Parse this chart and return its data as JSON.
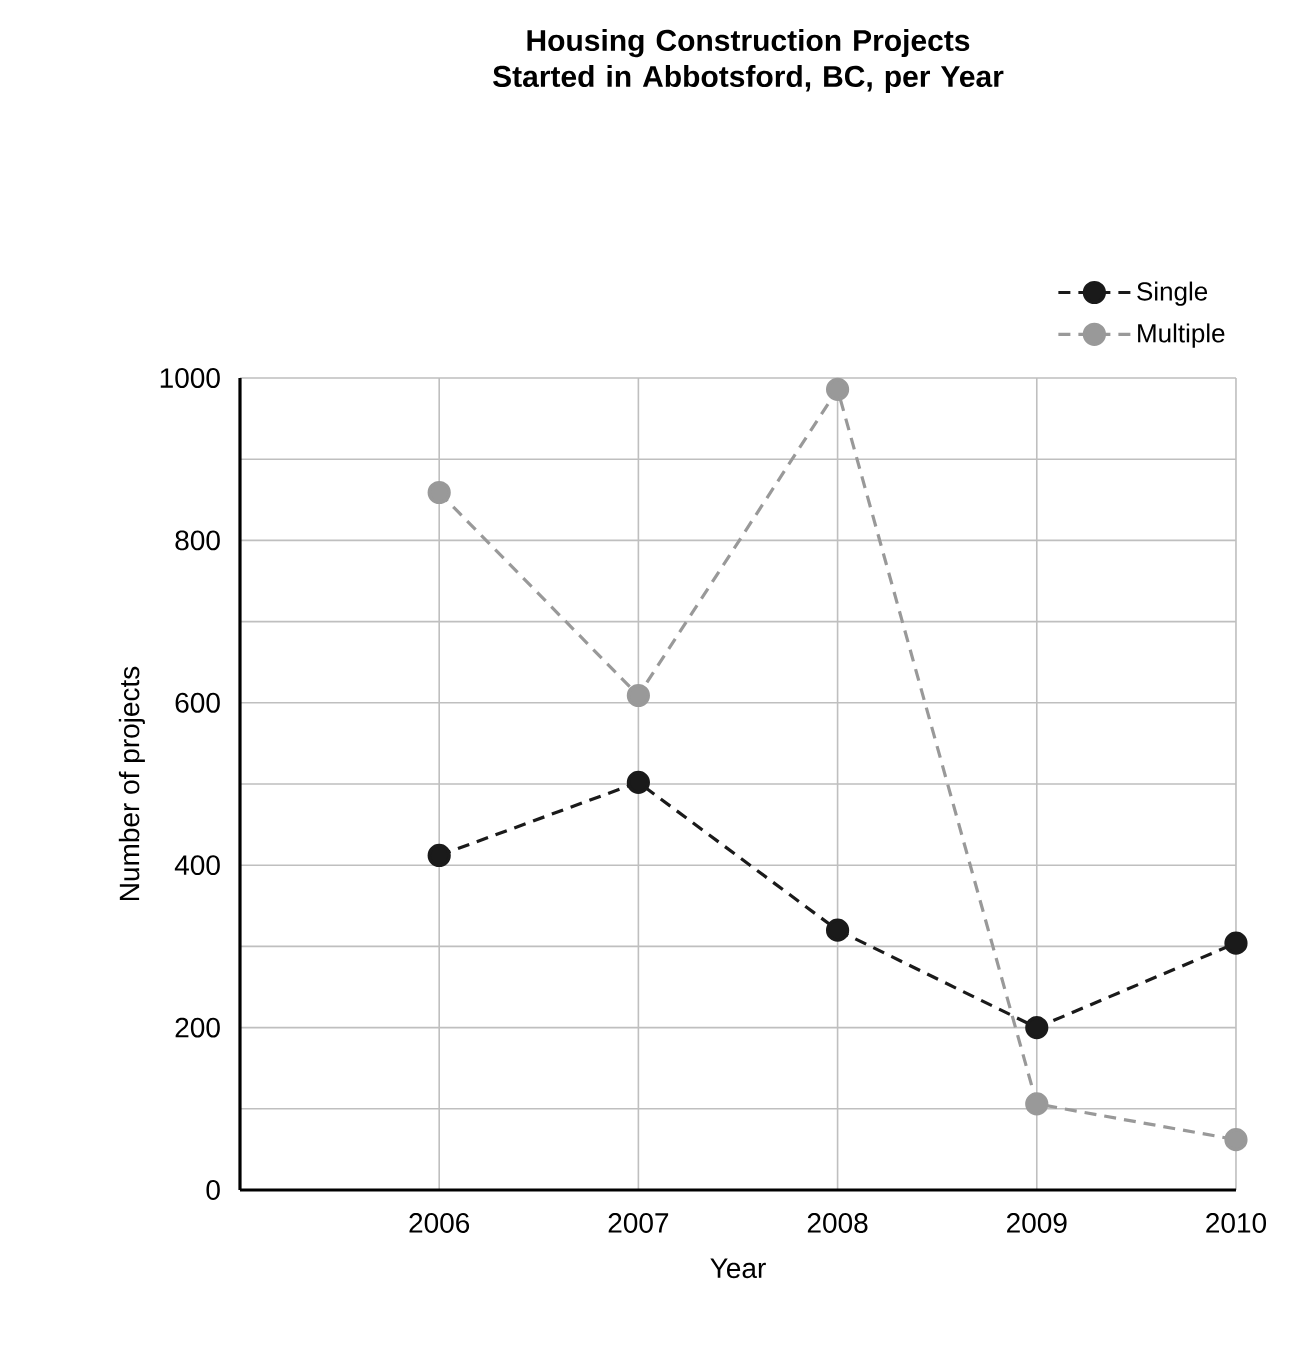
{
  "chart_data": {
    "type": "line",
    "title": "Housing Construction Projects Started in Abbotsford, BC, per Year",
    "xlabel": "Year",
    "ylabel": "Number of projects",
    "x": [
      2006,
      2007,
      2008,
      2009,
      2010
    ],
    "xlim": [
      2005,
      2010
    ],
    "xticks": [
      2006,
      2007,
      2008,
      2009,
      2010
    ],
    "ylim": [
      0,
      1000
    ],
    "yticks": [
      0,
      {
        "value": 100,
        "label": null
      },
      200,
      {
        "value": 300,
        "label": null
      },
      400,
      {
        "value": 500,
        "label": null
      },
      600,
      {
        "value": 700,
        "label": null
      },
      800,
      {
        "value": 900,
        "label": null
      },
      1000
    ],
    "grid": true,
    "legend": "top right",
    "marker": "circle",
    "line_style": "dashed",
    "series": [
      {
        "name": "Single",
        "color": "#1a1a1a",
        "values": [
          412,
          502,
          320,
          200,
          304
        ]
      },
      {
        "name": "Multiple",
        "color": "#999999",
        "values": [
          859,
          609,
          986,
          106,
          62
        ]
      }
    ]
  }
}
